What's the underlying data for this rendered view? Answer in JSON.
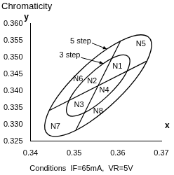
{
  "chart_data": {
    "type": "scatter",
    "title": "Chromaticity",
    "note": "Conditions  IF=65mA,  VR=5V",
    "x_label": "x",
    "y_label": "y",
    "xlim": [
      0.34,
      0.37
    ],
    "xticks": [
      0.34,
      0.35,
      0.36,
      0.37
    ],
    "ylim": [
      0.325,
      0.36
    ],
    "yticks": [
      {
        "value": 0.325,
        "label": "0.325"
      },
      {
        "value": 0.33,
        "label": "0.330"
      },
      {
        "value": 0.335,
        "label": "0.335"
      },
      {
        "value": 0.34,
        "label": "0.340"
      },
      {
        "value": 0.345,
        "label": "0.345"
      },
      {
        "value": 0.35,
        "label": "0.350"
      },
      {
        "value": 0.355,
        "label": "0.355"
      },
      {
        "value": 0.36,
        "label": "0.360"
      }
    ],
    "grid": false,
    "series": [
      {
        "name": "5 step",
        "type": "closed",
        "color": "#000000",
        "line_style": "solid",
        "marker": "none",
        "x": [
          0.367,
          0.3676,
          0.365,
          0.3598,
          0.3535,
          0.3477,
          0.344,
          0.3434,
          0.346,
          0.3512,
          0.3575,
          0.3633
        ],
        "y": [
          0.356,
          0.352,
          0.3451,
          0.3373,
          0.3306,
          0.3268,
          0.327,
          0.331,
          0.3379,
          0.3457,
          0.3524,
          0.3562
        ],
        "label_at": [
          0.3515,
          0.3548
        ],
        "arrow_to": [
          0.3575,
          0.3524
        ]
      },
      {
        "name": "3 step",
        "type": "closed",
        "color": "#000000",
        "line_style": "solid",
        "marker": "none",
        "x": [
          0.3623,
          0.3627,
          0.3612,
          0.3581,
          0.3543,
          0.3509,
          0.3487,
          0.3483,
          0.3498,
          0.3529,
          0.3567,
          0.3601
        ],
        "y": [
          0.3503,
          0.3479,
          0.3437,
          0.339,
          0.3349,
          0.3327,
          0.3327,
          0.3351,
          0.3393,
          0.344,
          0.3481,
          0.3504
        ],
        "label_at": [
          0.349,
          0.3505
        ],
        "arrow_to": [
          0.3567,
          0.3481
        ]
      },
      {
        "type": "line",
        "color": "#000000",
        "line_style": "solid",
        "marker": "none",
        "x": [
          0.3444,
          0.3666
        ],
        "y": [
          0.3342,
          0.3488
        ]
      },
      {
        "type": "line",
        "color": "#000000",
        "line_style": "solid",
        "marker": "none",
        "x": [
          0.3504,
          0.3606
        ],
        "y": [
          0.3283,
          0.3547
        ]
      }
    ],
    "labels": [
      {
        "text": "N1",
        "x": 0.3599,
        "y": 0.3472
      },
      {
        "text": "N2",
        "x": 0.3541,
        "y": 0.3429
      },
      {
        "text": "N3",
        "x": 0.3511,
        "y": 0.3358
      },
      {
        "text": "N4",
        "x": 0.3569,
        "y": 0.3401
      },
      {
        "text": "N5",
        "x": 0.3653,
        "y": 0.3538
      },
      {
        "text": "N6",
        "x": 0.3509,
        "y": 0.3434
      },
      {
        "text": "N7",
        "x": 0.3457,
        "y": 0.3292
      },
      {
        "text": "N8",
        "x": 0.3555,
        "y": 0.3338
      }
    ]
  }
}
